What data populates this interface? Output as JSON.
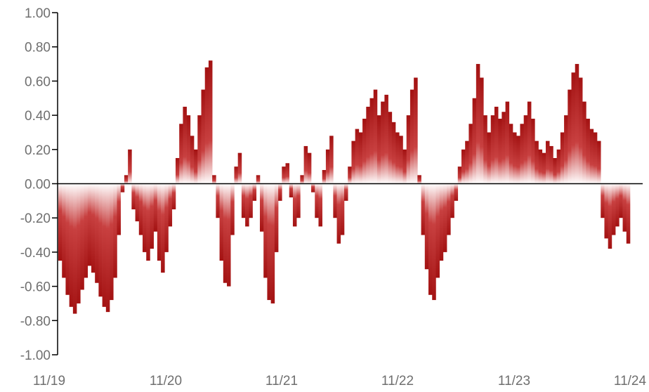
{
  "chart_data": {
    "type": "bar",
    "title": "",
    "xlabel": "",
    "ylabel": "",
    "ylim": [
      -1.0,
      1.0
    ],
    "yticks": [
      "1.00",
      "0.80",
      "0.60",
      "0.40",
      "0.20",
      "0.00",
      "-0.20",
      "-0.40",
      "-0.60",
      "-0.80",
      "-1.00"
    ],
    "ytick_values": [
      1.0,
      0.8,
      0.6,
      0.4,
      0.2,
      0.0,
      -0.2,
      -0.4,
      -0.6,
      -0.8,
      -1.0
    ],
    "xticks": [
      "11/19",
      "11/20",
      "11/21",
      "11/22",
      "11/23",
      "11/24"
    ],
    "x_range": [
      "2019-11",
      "2024-11"
    ],
    "grid": false,
    "legend": "none",
    "bar_color": "#b01515",
    "axis_color": "#000000",
    "tick_label_color": "#6f6f6f",
    "series": [
      {
        "x_start": "2019-11",
        "x_end": "2024-11",
        "values": [
          -0.45,
          -0.55,
          -0.65,
          -0.72,
          -0.76,
          -0.7,
          -0.62,
          -0.55,
          -0.48,
          -0.52,
          -0.58,
          -0.66,
          -0.72,
          -0.75,
          -0.68,
          -0.55,
          -0.3,
          -0.05,
          0.05,
          0.2,
          -0.15,
          -0.22,
          -0.3,
          -0.4,
          -0.45,
          -0.38,
          -0.28,
          -0.45,
          -0.52,
          -0.4,
          -0.25,
          -0.15,
          0.15,
          0.35,
          0.45,
          0.4,
          0.28,
          0.2,
          0.4,
          0.55,
          0.68,
          0.72,
          0.05,
          -0.2,
          -0.45,
          -0.58,
          -0.6,
          -0.3,
          0.1,
          0.18,
          -0.2,
          -0.25,
          -0.2,
          -0.1,
          0.05,
          -0.28,
          -0.55,
          -0.68,
          -0.7,
          -0.4,
          -0.1,
          0.1,
          0.12,
          -0.08,
          -0.25,
          -0.2,
          0.05,
          0.22,
          0.18,
          -0.05,
          -0.2,
          -0.25,
          0.08,
          0.2,
          0.28,
          -0.2,
          -0.35,
          -0.3,
          -0.1,
          0.1,
          0.25,
          0.32,
          0.3,
          0.38,
          0.45,
          0.5,
          0.55,
          0.4,
          0.48,
          0.52,
          0.42,
          0.36,
          0.3,
          0.28,
          0.2,
          0.4,
          0.55,
          0.62,
          0.05,
          -0.3,
          -0.5,
          -0.65,
          -0.68,
          -0.55,
          -0.45,
          -0.4,
          -0.3,
          -0.2,
          -0.1,
          0.1,
          0.2,
          0.25,
          0.35,
          0.5,
          0.7,
          0.62,
          0.4,
          0.3,
          0.4,
          0.45,
          0.38,
          0.42,
          0.48,
          0.35,
          0.3,
          0.28,
          0.35,
          0.4,
          0.48,
          0.38,
          0.25,
          0.2,
          0.18,
          0.25,
          0.22,
          0.15,
          0.2,
          0.3,
          0.4,
          0.55,
          0.65,
          0.7,
          0.62,
          0.48,
          0.38,
          0.32,
          0.3,
          0.25,
          -0.2,
          -0.32,
          -0.38,
          -0.3,
          -0.25,
          -0.2,
          -0.28,
          -0.35
        ]
      }
    ]
  }
}
